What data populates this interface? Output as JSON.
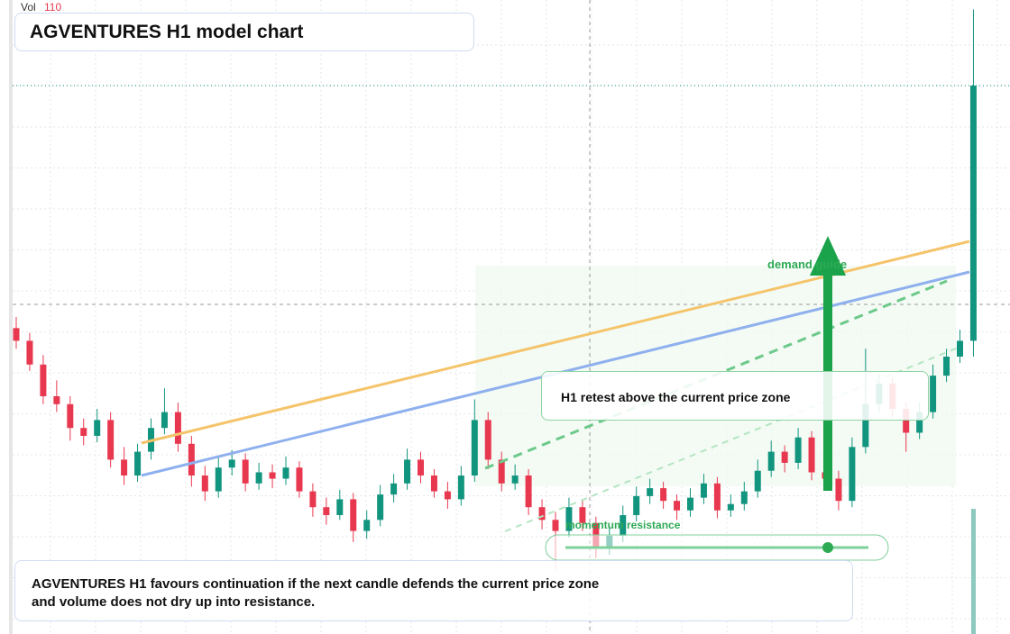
{
  "chart_data": {
    "type": "candlestick",
    "ylim": [
      90,
      130
    ],
    "candles": [
      [
        109.3,
        110,
        108,
        108.5
      ],
      [
        108.5,
        109,
        106.6,
        107
      ],
      [
        107,
        107.6,
        104.5,
        105
      ],
      [
        105,
        106,
        104,
        104.5
      ],
      [
        104.5,
        105,
        102.2,
        103
      ],
      [
        103,
        103.6,
        101.9,
        102.5
      ],
      [
        102.5,
        104.2,
        102.1,
        103.5
      ],
      [
        103.5,
        104,
        100.5,
        101
      ],
      [
        101,
        101.8,
        99.4,
        100
      ],
      [
        100,
        102,
        99.6,
        101.5
      ],
      [
        101.5,
        103.6,
        101,
        103
      ],
      [
        103,
        105.5,
        102.6,
        104
      ],
      [
        104,
        104.6,
        101.5,
        102
      ],
      [
        102,
        102.5,
        99.3,
        100
      ],
      [
        100,
        100.6,
        98.4,
        99
      ],
      [
        99,
        101.2,
        98.6,
        100.5
      ],
      [
        100.5,
        101.6,
        100,
        101
      ],
      [
        101,
        101.4,
        99,
        99.5
      ],
      [
        99.5,
        100.8,
        99.1,
        100.2
      ],
      [
        100.2,
        100.7,
        99.2,
        99.8
      ],
      [
        99.8,
        101.2,
        99.4,
        100.5
      ],
      [
        100.5,
        100.9,
        98.6,
        99
      ],
      [
        99,
        99.5,
        97.4,
        98
      ],
      [
        98,
        98.6,
        96.9,
        97.5
      ],
      [
        97.5,
        99.1,
        97.2,
        98.5
      ],
      [
        98.5,
        98.9,
        95.8,
        96.5
      ],
      [
        96.5,
        97.8,
        96,
        97.2
      ],
      [
        97.2,
        99.4,
        96.8,
        98.8
      ],
      [
        98.8,
        100.1,
        98.3,
        99.5
      ],
      [
        99.5,
        101.7,
        99.1,
        101
      ],
      [
        101,
        101.5,
        99.5,
        100
      ],
      [
        100,
        100.4,
        98.6,
        99
      ],
      [
        99,
        99.6,
        97.9,
        98.5
      ],
      [
        98.5,
        100.6,
        98.1,
        100
      ],
      [
        100,
        104.8,
        99.6,
        103.5
      ],
      [
        103.5,
        104,
        100.4,
        101
      ],
      [
        101,
        101.5,
        99,
        99.5
      ],
      [
        99.5,
        100.7,
        99.1,
        100
      ],
      [
        100,
        100.4,
        97.5,
        98
      ],
      [
        98,
        98.5,
        96.6,
        97.2
      ],
      [
        97.2,
        97.7,
        94,
        96.5
      ],
      [
        96.5,
        98.6,
        96.1,
        98
      ],
      [
        98,
        98.4,
        96.5,
        97
      ],
      [
        97,
        97.4,
        94.8,
        95.5
      ],
      [
        95.5,
        96.8,
        95,
        96.2
      ],
      [
        96.2,
        98.1,
        95.8,
        97.5
      ],
      [
        97.5,
        99.3,
        97.1,
        98.7
      ],
      [
        98.7,
        99.8,
        98.2,
        99.2
      ],
      [
        99.2,
        99.6,
        97.9,
        98.4
      ],
      [
        98.4,
        98.8,
        97.2,
        97.8
      ],
      [
        97.8,
        99.2,
        97.4,
        98.6
      ],
      [
        98.6,
        100.1,
        98.2,
        99.5
      ],
      [
        99.5,
        99.9,
        97.3,
        97.8
      ],
      [
        97.8,
        98.8,
        97.4,
        98.2
      ],
      [
        98.2,
        99.6,
        97.8,
        99
      ],
      [
        99,
        101,
        98.6,
        100.3
      ],
      [
        100.3,
        102.2,
        99.9,
        101.5
      ],
      [
        101.5,
        101.9,
        100.2,
        100.8
      ],
      [
        100.8,
        103,
        100.4,
        102.4
      ],
      [
        102.4,
        102.8,
        99.7,
        100.2
      ],
      [
        100.2,
        100.6,
        99.2,
        99.8
      ],
      [
        99.8,
        100.3,
        97.8,
        98.4
      ],
      [
        98.4,
        102.4,
        98,
        101.8
      ],
      [
        101.8,
        108,
        101.4,
        104.5
      ],
      [
        104.5,
        106.4,
        104,
        105.8
      ],
      [
        105.8,
        106.2,
        103.7,
        104.2
      ],
      [
        104.2,
        104.6,
        101.5,
        102.7
      ],
      [
        102.7,
        104.6,
        102.3,
        104
      ],
      [
        104,
        107,
        103.6,
        106.3
      ],
      [
        106.3,
        108,
        105.9,
        107.5
      ],
      [
        107.5,
        109.2,
        107.1,
        108.5
      ],
      [
        108.5,
        129.4,
        107.5,
        124.6
      ]
    ]
  },
  "volume": {
    "label": "Vol",
    "value": 110
  },
  "title": "AGVENTURES H1 model chart",
  "annotations": {
    "retest": "H1 retest above the current price zone",
    "demand": "demand guide",
    "momentum": "momentum resistance"
  },
  "footer": "AGVENTURES H1 favours continuation if the next candle defends the current price zone and volume does not dry up into resistance."
}
